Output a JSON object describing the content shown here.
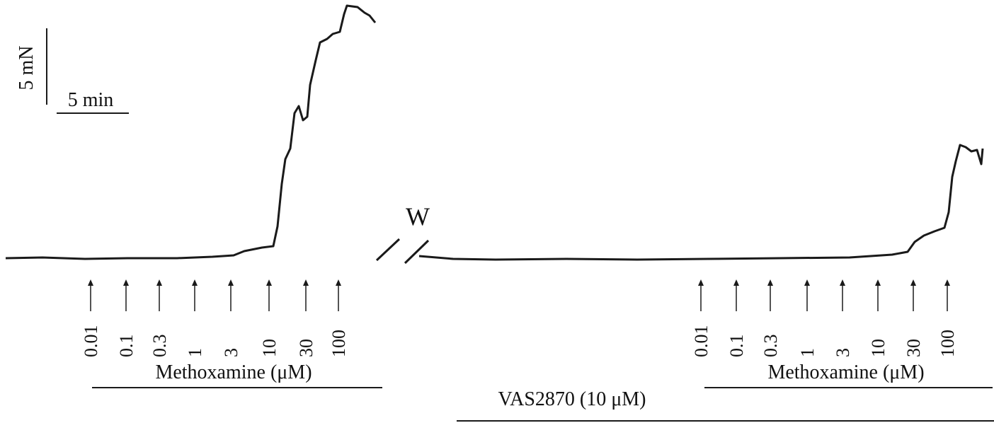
{
  "scale_bar": {
    "force": "5 mN",
    "time": "5 min"
  },
  "panels": [
    {
      "doses": [
        "0.01",
        "0.1",
        "0.3",
        "1",
        "3",
        "10",
        "30",
        "100"
      ],
      "drug_label": "Methoxamine (μM)"
    },
    {
      "doses": [
        "0.01",
        "0.1",
        "0.3",
        "1",
        "3",
        "10",
        "30",
        "100"
      ],
      "drug_label": "Methoxamine (μM)"
    }
  ],
  "washout": "W",
  "pretreatment": "VAS2870 (10 μM)"
}
